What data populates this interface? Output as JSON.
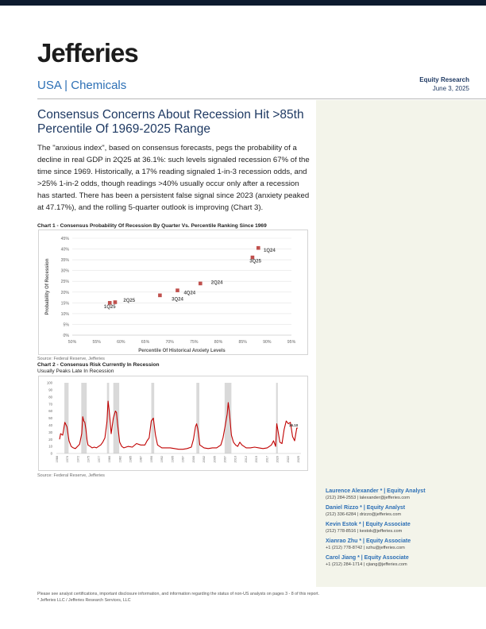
{
  "header": {
    "logo": "Jefferies",
    "sector": "USA | Chemicals",
    "report_type": "Equity Research",
    "date": "June 3, 2025"
  },
  "headline": "Consensus Concerns About Recession Hit >85th Percentile Of 1969-2025 Range",
  "body": "The \"anxious index\", based on consensus forecasts, pegs the probability of a decline in real GDP in 2Q25 at 36.1%: such levels signaled recession 67% of the time since 1969. Historically, a 17% reading signaled 1-in-3 recession odds, and >25% 1-in-2 odds, though readings >40% usually occur only after a recession has started. There has been a persistent false signal since 2023 (anxiety peaked at 47.17%), and the rolling 5-quarter outlook is improving (Chart 3).",
  "chart1": {
    "title": "Chart 1 - Consensus Probability Of Recession By Quarter Vs. Percentile Ranking Since 1969",
    "source": "Source: Federal Reserve, Jefferies"
  },
  "chart2": {
    "title": "Chart 2 - Consensus Risk Currently In Recession",
    "subtitle": "Usually Peaks Late In Recession",
    "source": "Source: Federal Reserve, Jefferies",
    "end_label": "36.10"
  },
  "chart_data": [
    {
      "type": "scatter",
      "xlabel": "Percentile Of Historical Anxiety Levels",
      "ylabel": "Probability Of Recession",
      "xlim": [
        0.5,
        0.95
      ],
      "ylim": [
        0,
        0.45
      ],
      "xticks": [
        "50%",
        "55%",
        "60%",
        "65%",
        "70%",
        "75%",
        "80%",
        "85%",
        "90%",
        "95%"
      ],
      "yticks": [
        "0%",
        "5%",
        "10%",
        "15%",
        "20%",
        "25%",
        "30%",
        "35%",
        "40%",
        "45%"
      ],
      "grid": true,
      "color": "#c0504d",
      "points": [
        {
          "x": 0.577,
          "y": 0.15,
          "label": ""
        },
        {
          "x": 0.588,
          "y": 0.153,
          "label": ""
        },
        {
          "x": 0.68,
          "y": 0.185,
          "label": ""
        },
        {
          "x": 0.716,
          "y": 0.208,
          "label": ""
        },
        {
          "x": 0.763,
          "y": 0.24,
          "label": ""
        },
        {
          "x": 0.87,
          "y": 0.361,
          "label": ""
        },
        {
          "x": 0.882,
          "y": 0.405,
          "label": ""
        }
      ],
      "annotations": [
        {
          "text": "1Q25",
          "x": 0.565,
          "y": 0.125
        },
        {
          "text": "2Q25",
          "x": 0.605,
          "y": 0.155
        },
        {
          "text": "3Q24",
          "x": 0.704,
          "y": 0.16
        },
        {
          "text": "4Q24",
          "x": 0.729,
          "y": 0.19
        },
        {
          "text": "2Q24",
          "x": 0.785,
          "y": 0.238
        },
        {
          "text": "3Q25",
          "x": 0.864,
          "y": 0.338
        },
        {
          "text": "1Q24",
          "x": 0.893,
          "y": 0.388
        }
      ]
    },
    {
      "type": "line",
      "ylim": [
        0,
        100
      ],
      "yticks": [
        "0",
        "10",
        "20",
        "30",
        "40",
        "50",
        "60",
        "70",
        "80",
        "90",
        "100"
      ],
      "xticks": [
        "1968",
        "1970",
        "1972",
        "1975",
        "1977",
        "1980",
        "1982",
        "1985",
        "1987",
        "1990",
        "1992",
        "1995",
        "1997",
        "2000",
        "2002",
        "2005",
        "2007",
        "2010",
        "2012",
        "2015",
        "2017",
        "2020",
        "2022",
        "2025"
      ],
      "color": "#c00000",
      "recession_color": "#d9d9d9",
      "recessions": [
        [
          1969.9,
          1970.9
        ],
        [
          1973.9,
          1975.2
        ],
        [
          1980.0,
          1980.5
        ],
        [
          1981.5,
          1982.9
        ],
        [
          1990.5,
          1991.2
        ],
        [
          2001.2,
          2001.9
        ],
        [
          2007.9,
          2009.5
        ],
        [
          2020.1,
          2020.5
        ]
      ],
      "series": {
        "x": [
          1968.75,
          1969,
          1969.5,
          1970,
          1970.5,
          1971,
          1971.5,
          1972,
          1972.5,
          1973,
          1973.5,
          1974,
          1974.25,
          1974.5,
          1974.75,
          1975,
          1975.25,
          1975.5,
          1976,
          1976.5,
          1977,
          1977.5,
          1978,
          1978.5,
          1979,
          1979.5,
          1980,
          1980.25,
          1980.5,
          1981,
          1981.5,
          1982,
          1982.25,
          1982.5,
          1983,
          1983.5,
          1984,
          1985,
          1986,
          1987,
          1988,
          1989,
          1989.5,
          1990,
          1990.5,
          1991,
          1991.5,
          1992,
          1993,
          1994,
          1995,
          1996,
          1997,
          1998,
          1999,
          2000,
          2000.5,
          2001,
          2001.25,
          2001.5,
          2001.75,
          2002,
          2002.5,
          2003,
          2004,
          2005,
          2006,
          2007,
          2007.5,
          2008,
          2008.5,
          2008.75,
          2009,
          2009.5,
          2010,
          2010.5,
          2011,
          2011.5,
          2012,
          2013,
          2014,
          2015,
          2016,
          2017,
          2018,
          2019,
          2019.5,
          2020,
          2020.25,
          2020.5,
          2021,
          2021.5,
          2022,
          2022.5,
          2023,
          2023.5,
          2024,
          2024.5,
          2025,
          2025.25
        ],
        "y": [
          20,
          28,
          26,
          44,
          38,
          18,
          10,
          8,
          7,
          10,
          13,
          28,
          52,
          46,
          44,
          34,
          20,
          12,
          10,
          8,
          9,
          8,
          10,
          12,
          16,
          22,
          45,
          74,
          62,
          28,
          50,
          60,
          58,
          42,
          16,
          10,
          8,
          10,
          9,
          14,
          12,
          12,
          18,
          22,
          46,
          50,
          26,
          12,
          8,
          8,
          8,
          7,
          6,
          6,
          7,
          9,
          20,
          38,
          42,
          36,
          26,
          12,
          10,
          8,
          7,
          8,
          8,
          12,
          22,
          38,
          56,
          72,
          60,
          26,
          16,
          12,
          10,
          16,
          12,
          8,
          8,
          9,
          8,
          7,
          8,
          12,
          18,
          10,
          42,
          34,
          16,
          14,
          34,
          46,
          42,
          44,
          24,
          18,
          36,
          36
        ]
      }
    }
  ],
  "analysts": [
    {
      "name": "Laurence Alexander * | Equity Analyst",
      "contact": "(212) 284-2553 | lalexander@jefferies.com"
    },
    {
      "name": "Daniel Rizzo * | Equity Analyst",
      "contact": "(212) 336-6284 | drizzo@jefferies.com"
    },
    {
      "name": "Kevin Estok * | Equity Associate",
      "contact": "(212) 778-8516 | kestok@jefferies.com"
    },
    {
      "name": "Xianrao Zhu * | Equity Associate",
      "contact": "+1 (212) 778-8742 | xzhu@jefferies.com"
    },
    {
      "name": "Carol Jiang * | Equity Associate",
      "contact": "+1 (212) 284-1714 | cjiang@jefferies.com"
    }
  ],
  "footer": {
    "line1": "Please see analyst certifications, important disclosure information, and information regarding the status of non-US analysts on pages 3 - 8 of this report.",
    "line2": "* Jefferies LLC / Jefferies Research Services, LLC"
  }
}
